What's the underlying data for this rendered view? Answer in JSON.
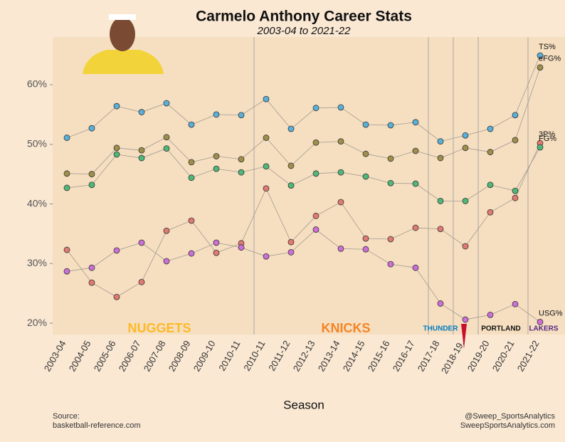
{
  "chart_data": {
    "type": "line",
    "title": "Carmelo Anthony Career Stats",
    "subtitle": "2003-04 to 2021-22",
    "x_label": "Season",
    "categories": [
      "2003-04",
      "2004-05",
      "2005-06",
      "2006-07",
      "2007-08",
      "2008-09",
      "2009-10",
      "2010-11",
      "2010-11",
      "2011-12",
      "2012-13",
      "2013-14",
      "2014-15",
      "2015-16",
      "2016-17",
      "2017-18",
      "2018-19.",
      "2019-20",
      "2020-21",
      "2021-22"
    ],
    "series": [
      {
        "name": "TS%",
        "color": "#5ab0d8",
        "values": [
          51.1,
          52.7,
          56.4,
          55.4,
          56.9,
          53.3,
          55.0,
          54.9,
          57.6,
          52.6,
          56.1,
          56.2,
          53.3,
          53.2,
          53.7,
          50.5,
          51.5,
          52.6,
          54.9,
          64.9
        ]
      },
      {
        "name": "eFG%",
        "color": "#9e8f4a",
        "values": [
          45.1,
          45.0,
          49.4,
          49.0,
          51.2,
          47.0,
          48.0,
          47.5,
          51.1,
          46.4,
          50.3,
          50.5,
          48.4,
          47.6,
          48.9,
          47.7,
          49.4,
          48.7,
          50.7,
          62.9
        ]
      },
      {
        "name": "3P%",
        "color": "#e07a72",
        "values": [
          32.3,
          26.8,
          24.4,
          26.9,
          35.5,
          37.2,
          31.8,
          33.4,
          42.6,
          33.6,
          38.0,
          40.3,
          34.2,
          34.1,
          36.0,
          35.8,
          32.9,
          38.6,
          41.0,
          50.2
        ]
      },
      {
        "name": "FG%",
        "color": "#4fb878",
        "values": [
          42.7,
          43.2,
          48.3,
          47.7,
          49.3,
          44.4,
          45.9,
          45.3,
          46.3,
          43.1,
          45.1,
          45.3,
          44.6,
          43.5,
          43.4,
          40.5,
          40.5,
          43.2,
          42.2,
          49.5
        ]
      },
      {
        "name": "USG%",
        "color": "#cc6fd6",
        "values": [
          28.7,
          29.3,
          32.2,
          33.5,
          30.4,
          31.7,
          33.5,
          32.7,
          31.2,
          31.9,
          35.7,
          32.5,
          32.4,
          29.9,
          29.3,
          23.3,
          20.6,
          21.4,
          23.2,
          20.2
        ]
      }
    ],
    "ylim": [
      18.1,
      68
    ],
    "yticks": [
      {
        "value": 20,
        "label": "20%"
      },
      {
        "value": 30,
        "label": "30%"
      },
      {
        "value": 40,
        "label": "40%"
      },
      {
        "value": 50,
        "label": "50%"
      },
      {
        "value": 60,
        "label": "60%"
      }
    ],
    "logos": [
      "NUGGETS",
      "KNICKS",
      "THUNDER",
      "PORTLAND",
      "LAKERS"
    ],
    "source": [
      "Source:",
      "basketball-reference.com"
    ],
    "credit": [
      "@Sweep_SportsAnalytics",
      "SweepSportsAnalytics.com"
    ]
  }
}
